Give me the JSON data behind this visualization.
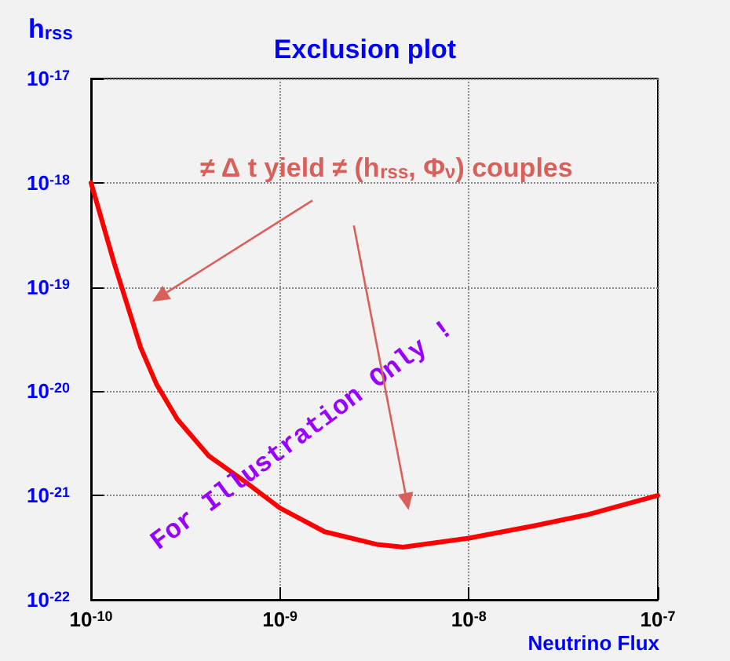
{
  "chart_data": {
    "type": "line",
    "title": "Exclusion plot",
    "xlabel": "Neutrino Flux",
    "ylabel": "h$_{rss}$",
    "annotations": [
      "≠ Δ t yield ≠ (h$_{rss}$, Φ$_{ν}$) couples",
      "For Illustration Only !"
    ],
    "x": [
      1e-10,
      1.33e-10,
      1.83e-10,
      2.22e-10,
      2.86e-10,
      4.2e-10,
      6.56e-10,
      1e-09,
      1.72e-09,
      3.25e-09,
      4.47e-09,
      1e-08,
      2.19e-08,
      4.17e-08,
      1e-07
    ],
    "series": [
      {
        "color": "#ff0000",
        "values": [
          1e-18,
          1.66e-19,
          2.63e-20,
          1.17e-20,
          5.4e-21,
          2.4e-21,
          1.35e-21,
          7.6e-22,
          4.5e-22,
          3.4e-22,
          3.2e-22,
          3.9e-22,
          5.1e-22,
          6.5e-22,
          1e-21
        ]
      }
    ],
    "log": "xy",
    "xlim": [
      1e-10,
      1e-07
    ],
    "ylim": [
      1e-22,
      1e-17
    ],
    "xticks": [
      {
        "value": 1e-10,
        "label": "10$^{-10}$"
      },
      {
        "value": 1e-09,
        "label": "10$^{-9}$"
      },
      {
        "value": 1e-08,
        "label": "10$^{-8}$"
      },
      {
        "value": 1e-07,
        "label": "10$^{-7}$"
      }
    ],
    "yticks": [
      {
        "value": 1e-22,
        "label": "10$^{-22}$"
      },
      {
        "value": 1e-21,
        "label": "10$^{-21}$"
      },
      {
        "value": 1e-20,
        "label": "10$^{-20}$"
      },
      {
        "value": 1e-19,
        "label": "10$^{-19}$"
      },
      {
        "value": 1e-18,
        "label": "10$^{-18}$"
      },
      {
        "value": 1e-17,
        "label": "10$^{-17}$"
      }
    ],
    "grid": true,
    "marker": "none",
    "line_style": "solid"
  }
}
